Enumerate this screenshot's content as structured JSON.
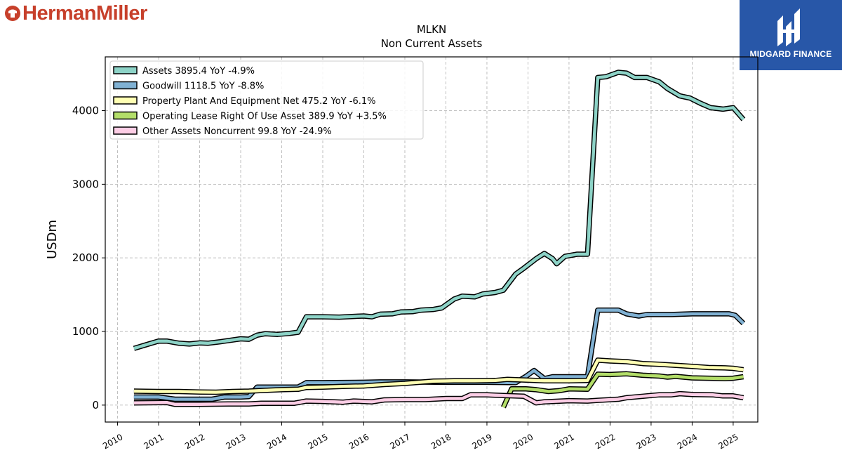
{
  "header": {
    "brand_name": "HermanMiller",
    "badge_text": "MIDGARD FINANCE"
  },
  "colors": {
    "brand": "#c7402b",
    "badge_bg": "#2857a8"
  },
  "chart_data": {
    "type": "line",
    "title": "MLKN",
    "subtitle": "Non Current  Assets",
    "xlabel": "",
    "ylabel": "USDm",
    "xlim": [
      2009.7,
      2025.6
    ],
    "ylim": [
      -230,
      4730
    ],
    "x_ticks": [
      "2010",
      "2011",
      "2012",
      "2013",
      "2014",
      "2015",
      "2016",
      "2017",
      "2018",
      "2019",
      "2020",
      "2021",
      "2022",
      "2023",
      "2024",
      "2025"
    ],
    "y_ticks": [
      0,
      1000,
      2000,
      3000,
      4000
    ],
    "grid": true,
    "legend_position": "top-left",
    "series": [
      {
        "name": "Assets",
        "legend": "Assets  3895.4 YoY -4.9%",
        "color": "#8dd3c7",
        "points": [
          [
            2010.4,
            770
          ],
          [
            2010.7,
            820
          ],
          [
            2011.0,
            870
          ],
          [
            2011.2,
            870
          ],
          [
            2011.5,
            840
          ],
          [
            2011.75,
            830
          ],
          [
            2012.0,
            845
          ],
          [
            2012.2,
            840
          ],
          [
            2012.5,
            860
          ],
          [
            2012.75,
            880
          ],
          [
            2013.0,
            900
          ],
          [
            2013.2,
            895
          ],
          [
            2013.4,
            950
          ],
          [
            2013.6,
            970
          ],
          [
            2013.9,
            960
          ],
          [
            2014.2,
            975
          ],
          [
            2014.4,
            990
          ],
          [
            2014.6,
            1200
          ],
          [
            2015.0,
            1200
          ],
          [
            2015.4,
            1195
          ],
          [
            2015.75,
            1205
          ],
          [
            2016.0,
            1210
          ],
          [
            2016.2,
            1200
          ],
          [
            2016.4,
            1235
          ],
          [
            2016.7,
            1240
          ],
          [
            2016.9,
            1265
          ],
          [
            2017.2,
            1270
          ],
          [
            2017.4,
            1290
          ],
          [
            2017.7,
            1300
          ],
          [
            2017.9,
            1320
          ],
          [
            2018.2,
            1440
          ],
          [
            2018.4,
            1480
          ],
          [
            2018.7,
            1470
          ],
          [
            2018.9,
            1510
          ],
          [
            2019.2,
            1530
          ],
          [
            2019.4,
            1560
          ],
          [
            2019.7,
            1780
          ],
          [
            2019.9,
            1860
          ],
          [
            2020.2,
            1990
          ],
          [
            2020.4,
            2060
          ],
          [
            2020.6,
            1990
          ],
          [
            2020.7,
            1920
          ],
          [
            2020.9,
            2020
          ],
          [
            2021.2,
            2050
          ],
          [
            2021.45,
            2050
          ],
          [
            2021.7,
            4450
          ],
          [
            2021.9,
            4460
          ],
          [
            2022.2,
            4520
          ],
          [
            2022.4,
            4510
          ],
          [
            2022.6,
            4450
          ],
          [
            2022.9,
            4450
          ],
          [
            2023.2,
            4390
          ],
          [
            2023.4,
            4300
          ],
          [
            2023.7,
            4200
          ],
          [
            2023.95,
            4170
          ],
          [
            2024.2,
            4100
          ],
          [
            2024.45,
            4040
          ],
          [
            2024.75,
            4020
          ],
          [
            2025.0,
            4040
          ],
          [
            2025.25,
            3880
          ]
        ]
      },
      {
        "name": "Goodwill",
        "legend": "Goodwill  1118.5 YoY -8.8%",
        "color": "#80b1d3",
        "points": [
          [
            2010.4,
            110
          ],
          [
            2011.0,
            110
          ],
          [
            2011.4,
            80
          ],
          [
            2012.0,
            80
          ],
          [
            2012.3,
            80
          ],
          [
            2012.6,
            110
          ],
          [
            2013.0,
            110
          ],
          [
            2013.2,
            115
          ],
          [
            2013.4,
            245
          ],
          [
            2014.0,
            245
          ],
          [
            2014.4,
            245
          ],
          [
            2014.6,
            305
          ],
          [
            2015.0,
            305
          ],
          [
            2016.0,
            310
          ],
          [
            2016.4,
            315
          ],
          [
            2017.0,
            315
          ],
          [
            2018.0,
            310
          ],
          [
            2019.0,
            310
          ],
          [
            2019.7,
            305
          ],
          [
            2019.95,
            390
          ],
          [
            2020.15,
            470
          ],
          [
            2020.4,
            360
          ],
          [
            2020.6,
            385
          ],
          [
            2021.0,
            385
          ],
          [
            2021.45,
            385
          ],
          [
            2021.7,
            1290
          ],
          [
            2022.2,
            1290
          ],
          [
            2022.4,
            1240
          ],
          [
            2022.7,
            1210
          ],
          [
            2022.9,
            1230
          ],
          [
            2023.5,
            1230
          ],
          [
            2024.0,
            1240
          ],
          [
            2024.5,
            1240
          ],
          [
            2024.9,
            1240
          ],
          [
            2025.05,
            1220
          ],
          [
            2025.25,
            1110
          ]
        ]
      },
      {
        "name": "Property Plant And Equipment Net",
        "legend": "Property Plant And Equipment Net  475.2 YoY -6.1%",
        "color": "#ffffb3",
        "points": [
          [
            2010.4,
            190
          ],
          [
            2011.0,
            185
          ],
          [
            2011.5,
            185
          ],
          [
            2012.0,
            178
          ],
          [
            2012.4,
            175
          ],
          [
            2012.8,
            185
          ],
          [
            2013.2,
            190
          ],
          [
            2013.6,
            200
          ],
          [
            2014.0,
            210
          ],
          [
            2014.4,
            215
          ],
          [
            2014.6,
            240
          ],
          [
            2015.0,
            245
          ],
          [
            2015.5,
            255
          ],
          [
            2016.0,
            260
          ],
          [
            2016.5,
            280
          ],
          [
            2017.0,
            295
          ],
          [
            2017.7,
            325
          ],
          [
            2018.2,
            330
          ],
          [
            2018.7,
            330
          ],
          [
            2019.2,
            335
          ],
          [
            2019.5,
            350
          ],
          [
            2019.95,
            340
          ],
          [
            2020.4,
            330
          ],
          [
            2021.0,
            330
          ],
          [
            2021.45,
            335
          ],
          [
            2021.7,
            610
          ],
          [
            2022.0,
            600
          ],
          [
            2022.4,
            590
          ],
          [
            2022.8,
            565
          ],
          [
            2023.2,
            555
          ],
          [
            2023.6,
            540
          ],
          [
            2024.0,
            525
          ],
          [
            2024.4,
            510
          ],
          [
            2024.8,
            505
          ],
          [
            2025.0,
            500
          ],
          [
            2025.25,
            480
          ]
        ]
      },
      {
        "name": "Operating Lease Right Of Use Asset",
        "legend": "Operating Lease Right Of Use Asset  389.9 YoY +3.5%",
        "color": "#b3de69",
        "points": [
          [
            2019.4,
            -30
          ],
          [
            2019.6,
            220
          ],
          [
            2019.95,
            220
          ],
          [
            2020.2,
            210
          ],
          [
            2020.5,
            185
          ],
          [
            2020.75,
            195
          ],
          [
            2021.0,
            220
          ],
          [
            2021.45,
            215
          ],
          [
            2021.7,
            420
          ],
          [
            2022.0,
            415
          ],
          [
            2022.4,
            425
          ],
          [
            2022.8,
            405
          ],
          [
            2023.2,
            395
          ],
          [
            2023.4,
            380
          ],
          [
            2023.6,
            390
          ],
          [
            2024.0,
            370
          ],
          [
            2024.4,
            365
          ],
          [
            2024.8,
            360
          ],
          [
            2025.0,
            365
          ],
          [
            2025.25,
            385
          ]
        ]
      },
      {
        "name": "Other Assets Noncurrent",
        "legend": "Other Assets Noncurrent  99.8 YoY -24.9%",
        "color": "#fccde5",
        "points": [
          [
            2010.4,
            30
          ],
          [
            2011.2,
            35
          ],
          [
            2011.4,
            10
          ],
          [
            2012.0,
            10
          ],
          [
            2012.7,
            15
          ],
          [
            2013.2,
            15
          ],
          [
            2013.5,
            25
          ],
          [
            2014.3,
            25
          ],
          [
            2014.6,
            55
          ],
          [
            2015.0,
            50
          ],
          [
            2015.5,
            40
          ],
          [
            2015.75,
            55
          ],
          [
            2016.2,
            45
          ],
          [
            2016.5,
            70
          ],
          [
            2017.0,
            75
          ],
          [
            2017.5,
            75
          ],
          [
            2018.0,
            90
          ],
          [
            2018.4,
            90
          ],
          [
            2018.6,
            140
          ],
          [
            2019.0,
            140
          ],
          [
            2019.4,
            130
          ],
          [
            2019.9,
            120
          ],
          [
            2020.2,
            30
          ],
          [
            2020.4,
            45
          ],
          [
            2021.0,
            60
          ],
          [
            2021.45,
            55
          ],
          [
            2021.7,
            65
          ],
          [
            2022.2,
            80
          ],
          [
            2022.4,
            100
          ],
          [
            2022.8,
            120
          ],
          [
            2023.2,
            140
          ],
          [
            2023.5,
            140
          ],
          [
            2023.7,
            155
          ],
          [
            2024.0,
            145
          ],
          [
            2024.5,
            140
          ],
          [
            2024.75,
            125
          ],
          [
            2025.0,
            125
          ],
          [
            2025.25,
            100
          ]
        ]
      }
    ]
  }
}
